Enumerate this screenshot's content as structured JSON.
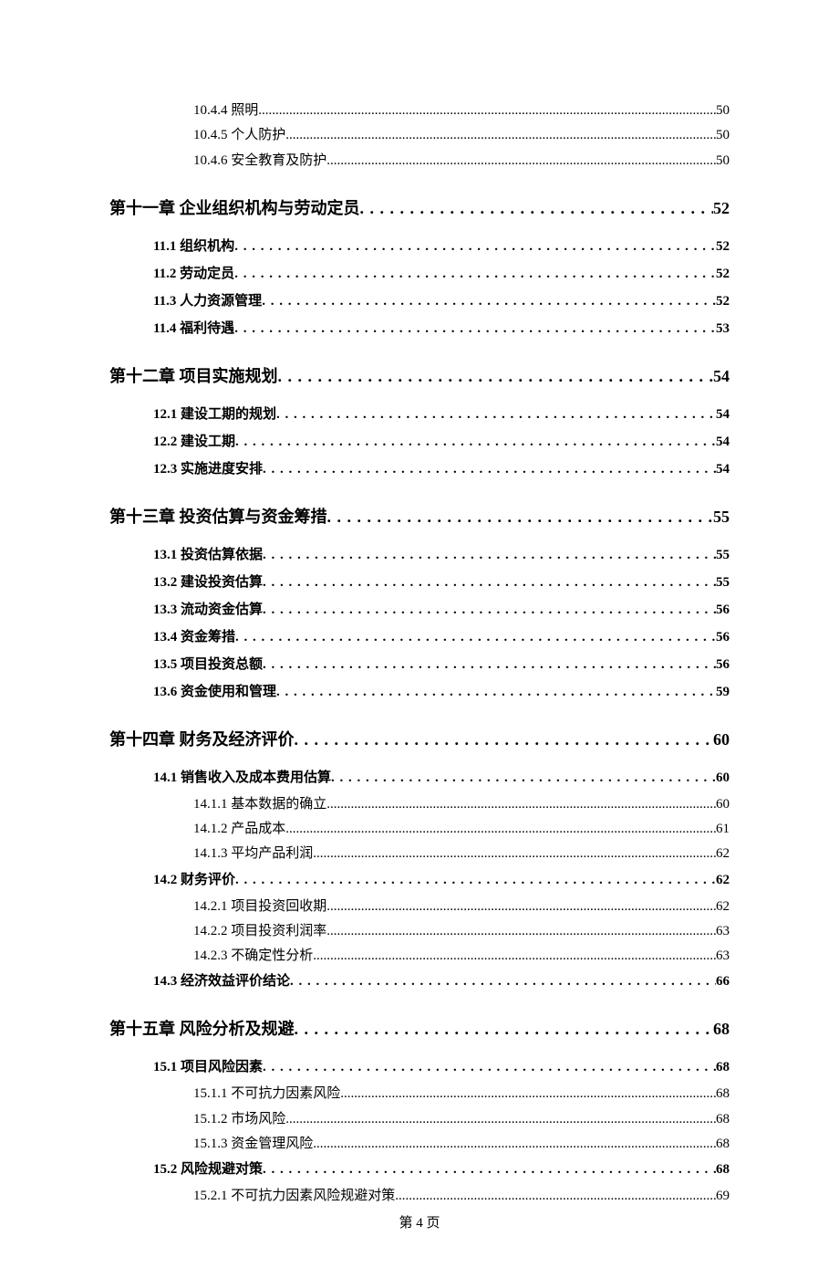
{
  "footer": "第 4 页",
  "toc": [
    {
      "level": 3,
      "label": "10.4.4 照明",
      "page": "50"
    },
    {
      "level": 3,
      "label": "10.4.5 个人防护",
      "page": "50"
    },
    {
      "level": 3,
      "label": "10.4.6 安全教育及防护",
      "page": "50"
    },
    {
      "level": 1,
      "label": "第十一章  企业组织机构与劳动定员",
      "page": "52"
    },
    {
      "level": 2,
      "label": "11.1 组织机构",
      "page": "52"
    },
    {
      "level": 2,
      "label": "11.2 劳动定员",
      "page": "52"
    },
    {
      "level": 2,
      "label": "11.3 人力资源管理",
      "page": "52"
    },
    {
      "level": 2,
      "label": "11.4 福利待遇",
      "page": "53"
    },
    {
      "level": 1,
      "label": "第十二章  项目实施规划",
      "page": "54"
    },
    {
      "level": 2,
      "label": "12.1 建设工期的规划",
      "page": "54"
    },
    {
      "level": 2,
      "label": "12.2  建设工期",
      "page": "54"
    },
    {
      "level": 2,
      "label": "12.3 实施进度安排",
      "page": "54"
    },
    {
      "level": 1,
      "label": "第十三章  投资估算与资金筹措",
      "page": "55"
    },
    {
      "level": 2,
      "label": "13.1 投资估算依据",
      "page": "55"
    },
    {
      "level": 2,
      "label": "13.2 建设投资估算",
      "page": "55"
    },
    {
      "level": 2,
      "label": "13.3 流动资金估算",
      "page": "56"
    },
    {
      "level": 2,
      "label": "13.4 资金筹措",
      "page": "56"
    },
    {
      "level": 2,
      "label": "13.5 项目投资总额",
      "page": "56"
    },
    {
      "level": 2,
      "label": "13.6 资金使用和管理",
      "page": "59"
    },
    {
      "level": 1,
      "label": "第十四章  财务及经济评价",
      "page": "60"
    },
    {
      "level": 2,
      "label": "14.1 销售收入及成本费用估算",
      "page": "60"
    },
    {
      "level": 3,
      "label": "14.1.1 基本数据的确立",
      "page": "60"
    },
    {
      "level": 3,
      "label": "14.1.2 产品成本",
      "page": "61"
    },
    {
      "level": 3,
      "label": "14.1.3 平均产品利润",
      "page": "62"
    },
    {
      "level": 2,
      "label": "14.2 财务评价",
      "page": "62"
    },
    {
      "level": 3,
      "label": "14.2.1 项目投资回收期",
      "page": "62"
    },
    {
      "level": 3,
      "label": "14.2.2 项目投资利润率",
      "page": "63"
    },
    {
      "level": 3,
      "label": "14.2.3 不确定性分析",
      "page": "63"
    },
    {
      "level": 2,
      "label": "14.3 经济效益评价结论",
      "page": "66"
    },
    {
      "level": 1,
      "label": "第十五章  风险分析及规避",
      "page": "68"
    },
    {
      "level": 2,
      "label": "15.1 项目风险因素",
      "page": "68"
    },
    {
      "level": 3,
      "label": "15.1.1 不可抗力因素风险",
      "page": "68"
    },
    {
      "level": 3,
      "label": "15.1.2 市场风险",
      "page": "68"
    },
    {
      "level": 3,
      "label": "15.1.3 资金管理风险",
      "page": "68"
    },
    {
      "level": 2,
      "label": "15.2 风险规避对策",
      "page": "68"
    },
    {
      "level": 3,
      "label": "15.2.1 不可抗力因素风险规避对策",
      "page": "69"
    }
  ]
}
